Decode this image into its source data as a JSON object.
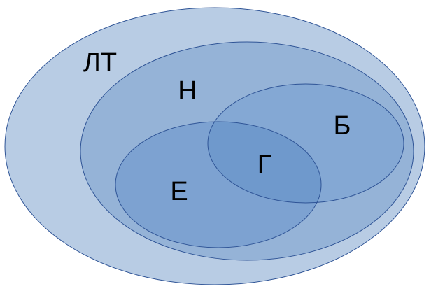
{
  "diagram": {
    "type": "venn-euler",
    "sets": {
      "lt": {
        "label": "ЛТ",
        "fill": "#b8cce4",
        "stroke": "#2f5496"
      },
      "n": {
        "label": "Н",
        "fill": "#95b3d7",
        "stroke": "#2f5496"
      },
      "b": {
        "label": "Б",
        "fill": "#84a8d4",
        "stroke": "#2f5496"
      },
      "e": {
        "label": "Е",
        "fill": "#7da2d1",
        "stroke": "#2f5496"
      },
      "g": {
        "label": "Г",
        "fill": "#6f99cc",
        "stroke": "#2f5496"
      }
    },
    "relations": {
      "n_subset_of": "ЛТ",
      "b_subset_of": "Н",
      "e_subset_of": "Н",
      "intersection_b_e": "Г"
    }
  }
}
